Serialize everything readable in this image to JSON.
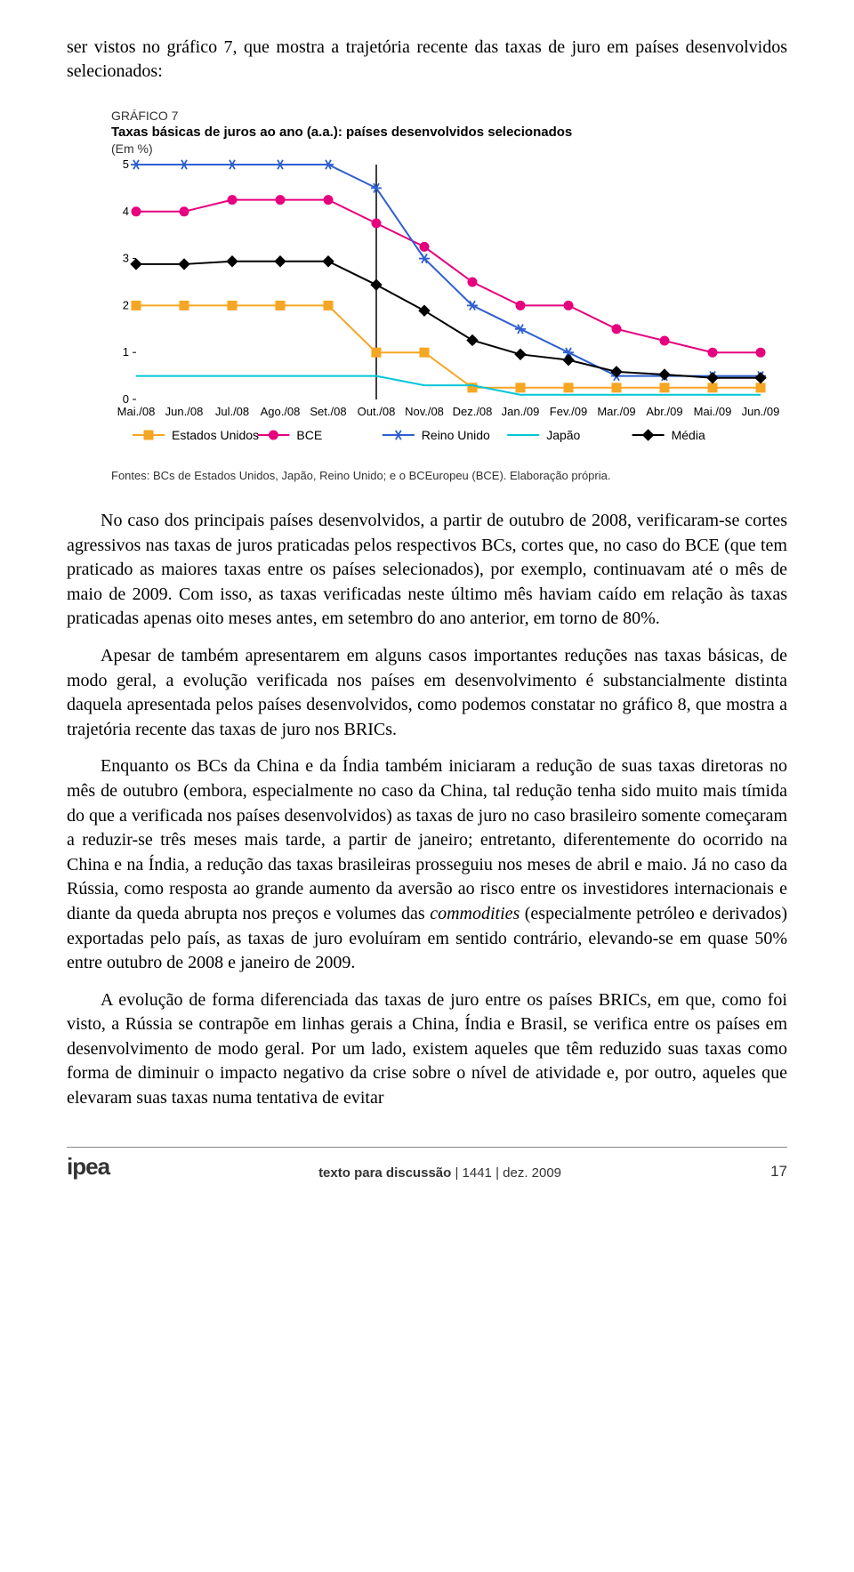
{
  "intro": "ser vistos no gráfico 7, que mostra a trajetória recente das taxas de juro em países desenvolvidos selecionados:",
  "chart": {
    "type": "line",
    "label": "GRÁFICO 7",
    "title": "Taxas básicas de juros ao ano (a.a.): países desenvolvidos selecionados",
    "unit": "(Em %)",
    "source": "Fontes: BCs de Estados Unidos, Japão, Reino Unido; e o BCEuropeu (BCE). Elaboração própria.",
    "categories": [
      "Mai./08",
      "Jun./08",
      "Jul./08",
      "Ago./08",
      "Set./08",
      "Out./08",
      "Nov./08",
      "Dez./08",
      "Jan./09",
      "Fev./09",
      "Mar./09",
      "Abr./09",
      "Mai./09",
      "Jun./09"
    ],
    "ylim": [
      0,
      5
    ],
    "ytick_step": 1,
    "vline_index": 5,
    "background_color": "#ffffff",
    "axis_color": "#000000",
    "tick_fontsize": 13,
    "legend_fontsize": 14,
    "marker_size": 5,
    "line_width": 2,
    "series": [
      {
        "name": "Estados Unidos",
        "color": "#f5a623",
        "marker": "square",
        "values": [
          2.0,
          2.0,
          2.0,
          2.0,
          2.0,
          1.0,
          1.0,
          0.25,
          0.25,
          0.25,
          0.25,
          0.25,
          0.25,
          0.25
        ]
      },
      {
        "name": "BCE",
        "color": "#e6007e",
        "marker": "circle",
        "values": [
          4.0,
          4.0,
          4.25,
          4.25,
          4.25,
          3.75,
          3.25,
          2.5,
          2.0,
          2.0,
          1.5,
          1.25,
          1.0,
          1.0
        ]
      },
      {
        "name": "Reino Unido",
        "color": "#2e5fcf",
        "marker": "asterisk",
        "values": [
          5.0,
          5.0,
          5.0,
          5.0,
          5.0,
          4.5,
          3.0,
          2.0,
          1.5,
          1.0,
          0.5,
          0.5,
          0.5,
          0.5
        ]
      },
      {
        "name": "Japão",
        "color": "#00c6d7",
        "marker": "none",
        "values": [
          0.5,
          0.5,
          0.5,
          0.5,
          0.5,
          0.5,
          0.3,
          0.3,
          0.1,
          0.1,
          0.1,
          0.1,
          0.1,
          0.1
        ]
      },
      {
        "name": "Média",
        "color": "#000000",
        "marker": "diamond",
        "values": [
          2.88,
          2.88,
          2.94,
          2.94,
          2.94,
          2.44,
          1.89,
          1.26,
          0.96,
          0.84,
          0.59,
          0.53,
          0.46,
          0.46
        ]
      }
    ]
  },
  "paragraphs": [
    "No caso dos principais países desenvolvidos, a partir de outubro de 2008, verificaram-se cortes agressivos nas taxas de juros praticadas pelos respectivos BCs, cortes que, no caso do BCE (que tem praticado as maiores taxas entre os países selecionados), por exemplo, continuavam até o mês de maio de 2009. Com isso, as taxas verificadas neste último mês haviam caído em relação às taxas praticadas apenas oito meses antes, em setembro do ano anterior, em torno de 80%.",
    "Apesar de também apresentarem em alguns casos importantes reduções nas taxas básicas, de modo geral, a evolução verificada nos países em desenvolvimento é substancialmente distinta daquela apresentada pelos países desenvolvidos, como podemos constatar no gráfico 8, que mostra a trajetória recente das taxas de juro nos BRICs.",
    "Enquanto os BCs da China e da Índia também iniciaram a redução de suas taxas diretoras no mês de outubro (embora, especialmente no caso da China, tal redução tenha sido muito mais tímida do que a verificada nos países desenvolvidos) as taxas de juro no caso brasileiro somente começaram a reduzir-se três meses mais tarde, a partir de janeiro; entretanto, diferentemente do ocorrido na China e na Índia, a redução das taxas brasileiras prosseguiu nos meses de abril e maio. Já no caso da Rússia, como resposta ao grande aumento da aversão ao risco entre os investidores internacionais e diante da queda abrupta nos preços e volumes das <em>commodities</em> (especialmente petróleo e derivados) exportadas pelo país, as taxas de juro evoluíram em sentido contrário, elevando-se em quase 50% entre outubro de 2008 e janeiro de 2009.",
    "A evolução de forma diferenciada das taxas de juro entre os países BRICs, em que, como foi visto, a Rússia se contrapõe em linhas gerais a China, Índia e Brasil, se verifica entre os países em desenvolvimento de modo geral. Por um lado, existem aqueles que têm reduzido suas taxas como forma de diminuir o impacto negativo da crise sobre o nível de atividade e, por outro, aqueles que elevaram suas taxas numa tentativa de evitar"
  ],
  "footer": {
    "logo": "ipea",
    "center_bold": "texto para discussão",
    "center_rest": " | 1441 | dez. 2009",
    "page": "17"
  }
}
